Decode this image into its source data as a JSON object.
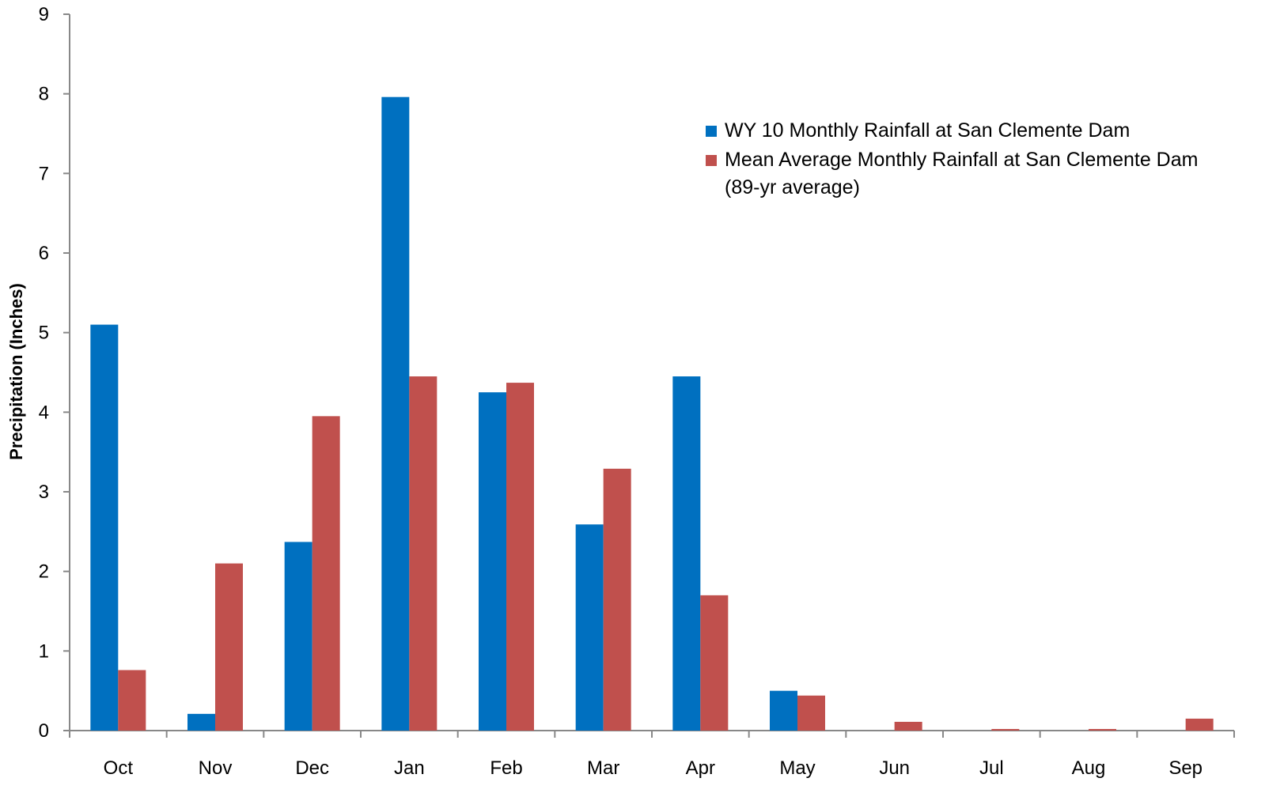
{
  "chart_data": {
    "type": "bar",
    "y_label": "Precipitation (Inches)",
    "categories": [
      "Oct",
      "Nov",
      "Dec",
      "Jan",
      "Feb",
      "Mar",
      "Apr",
      "May",
      "Jun",
      "Jul",
      "Aug",
      "Sep"
    ],
    "series": [
      {
        "name": "WY 10 Monthly Rainfall at San Clemente Dam",
        "color": "#0070c0",
        "values": [
          5.1,
          0.21,
          2.37,
          7.96,
          4.25,
          2.59,
          4.45,
          0.5,
          0,
          0,
          0,
          0
        ]
      },
      {
        "name": "Mean Average Monthly Rainfall at San Clemente Dam (89-yr average)",
        "color": "#c0504d",
        "values": [
          0.76,
          2.1,
          3.95,
          4.45,
          4.37,
          3.29,
          1.7,
          0.44,
          0.11,
          0.02,
          0.02,
          0.15
        ]
      }
    ],
    "ylim": [
      0,
      9
    ],
    "yticks": [
      0,
      1,
      2,
      3,
      4,
      5,
      6,
      7,
      8,
      9
    ],
    "grid": false,
    "legend": "top-right"
  }
}
